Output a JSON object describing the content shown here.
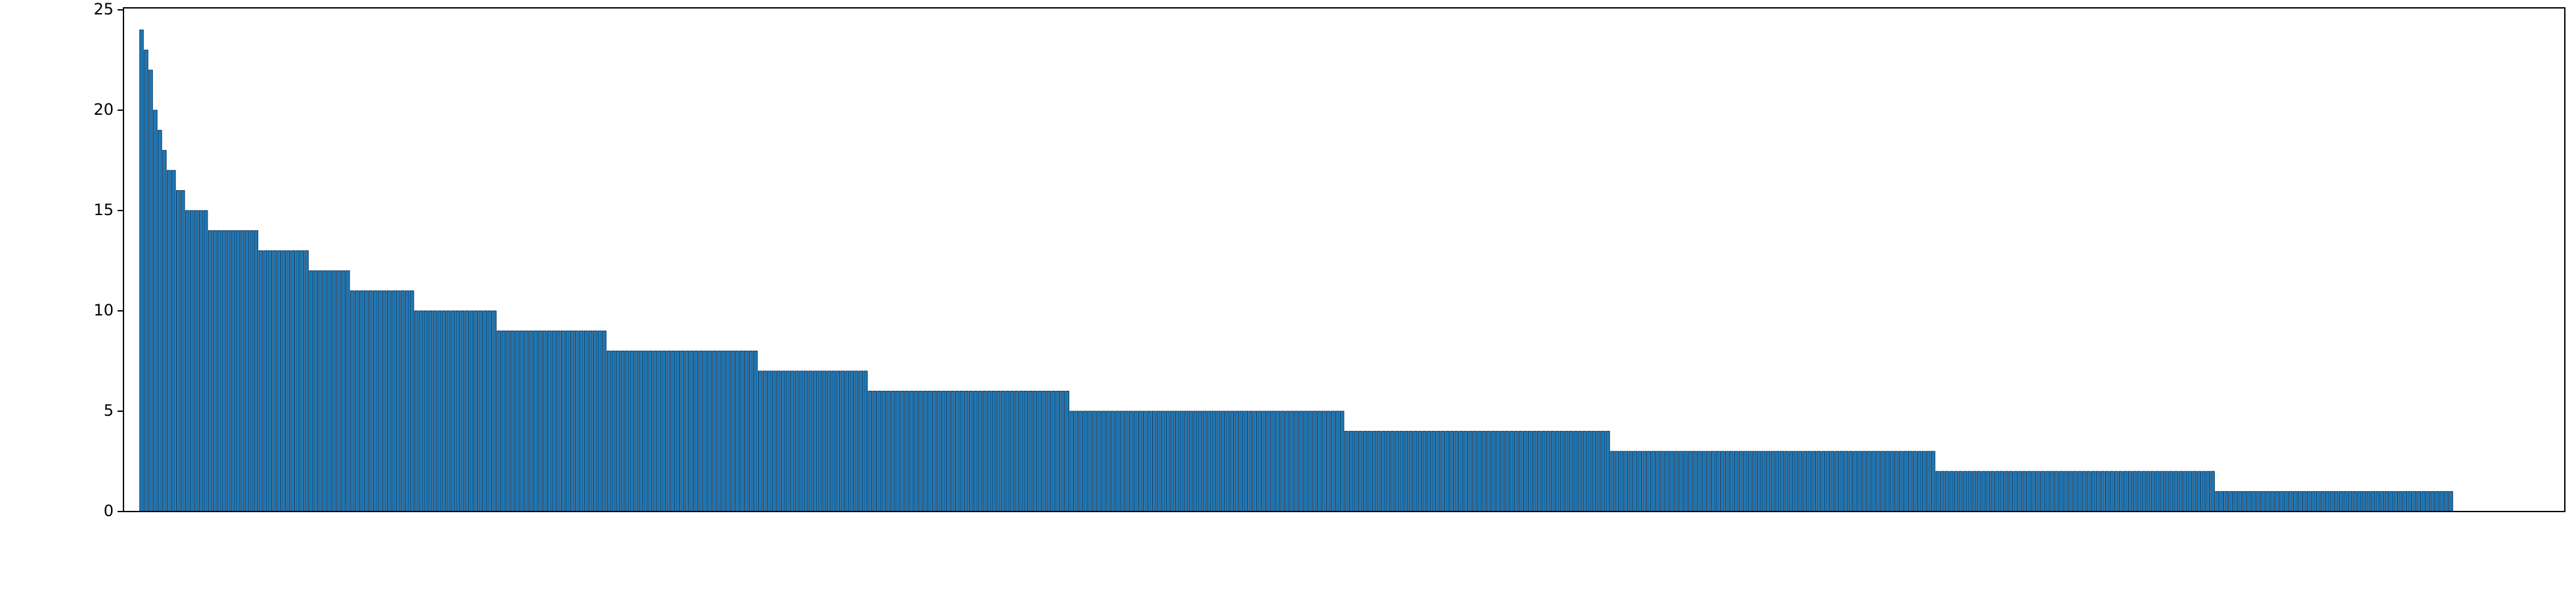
{
  "chart_data": {
    "type": "bar",
    "color": "#1f77b4",
    "ylim": [
      0,
      25.1
    ],
    "yticks": [
      0,
      5,
      10,
      15,
      20,
      25
    ],
    "values": [
      24,
      23,
      22,
      20,
      19,
      18,
      17,
      17,
      16,
      16,
      15,
      15,
      15,
      15,
      15,
      14,
      14,
      14,
      14,
      14,
      14,
      14,
      14,
      14,
      14,
      14,
      13,
      13,
      13,
      13,
      13,
      13,
      13,
      13,
      13,
      13,
      13,
      12,
      12,
      12,
      12,
      12,
      12,
      12,
      12,
      12,
      11,
      11,
      11,
      11,
      11,
      11,
      11,
      11,
      11,
      11,
      11,
      11,
      11,
      11,
      10,
      10,
      10,
      10,
      10,
      10,
      10,
      10,
      10,
      10,
      10,
      10,
      10,
      10,
      10,
      10,
      10,
      10,
      9,
      9,
      9,
      9,
      9,
      9,
      9,
      9,
      9,
      9,
      9,
      9,
      9,
      9,
      9,
      9,
      9,
      9,
      9,
      9,
      9,
      9,
      9,
      9,
      8,
      8,
      8,
      8,
      8,
      8,
      8,
      8,
      8,
      8,
      8,
      8,
      8,
      8,
      8,
      8,
      8,
      8,
      8,
      8,
      8,
      8,
      8,
      8,
      8,
      8,
      8,
      8,
      8,
      8,
      8,
      8,
      8,
      7,
      7,
      7,
      7,
      7,
      7,
      7,
      7,
      7,
      7,
      7,
      7,
      7,
      7,
      7,
      7,
      7,
      7,
      7,
      7,
      7,
      7,
      7,
      7,
      6,
      6,
      6,
      6,
      6,
      6,
      6,
      6,
      6,
      6,
      6,
      6,
      6,
      6,
      6,
      6,
      6,
      6,
      6,
      6,
      6,
      6,
      6,
      6,
      6,
      6,
      6,
      6,
      6,
      6,
      6,
      6,
      6,
      6,
      6,
      6,
      6,
      6,
      6,
      6,
      6,
      6,
      6,
      6,
      5,
      5,
      5,
      5,
      5,
      5,
      5,
      5,
      5,
      5,
      5,
      5,
      5,
      5,
      5,
      5,
      5,
      5,
      5,
      5,
      5,
      5,
      5,
      5,
      5,
      5,
      5,
      5,
      5,
      5,
      5,
      5,
      5,
      5,
      5,
      5,
      5,
      5,
      5,
      5,
      5,
      5,
      5,
      5,
      5,
      5,
      5,
      5,
      5,
      5,
      5,
      5,
      5,
      5,
      5,
      5,
      5,
      5,
      5,
      5,
      4,
      4,
      4,
      4,
      4,
      4,
      4,
      4,
      4,
      4,
      4,
      4,
      4,
      4,
      4,
      4,
      4,
      4,
      4,
      4,
      4,
      4,
      4,
      4,
      4,
      4,
      4,
      4,
      4,
      4,
      4,
      4,
      4,
      4,
      4,
      4,
      4,
      4,
      4,
      4,
      4,
      4,
      4,
      4,
      4,
      4,
      4,
      4,
      4,
      4,
      4,
      4,
      4,
      4,
      4,
      4,
      4,
      4,
      3,
      3,
      3,
      3,
      3,
      3,
      3,
      3,
      3,
      3,
      3,
      3,
      3,
      3,
      3,
      3,
      3,
      3,
      3,
      3,
      3,
      3,
      3,
      3,
      3,
      3,
      3,
      3,
      3,
      3,
      3,
      3,
      3,
      3,
      3,
      3,
      3,
      3,
      3,
      3,
      3,
      3,
      3,
      3,
      3,
      3,
      3,
      3,
      3,
      3,
      3,
      3,
      3,
      3,
      3,
      3,
      3,
      3,
      3,
      3,
      3,
      3,
      3,
      3,
      3,
      3,
      3,
      3,
      3,
      3,
      3,
      2,
      2,
      2,
      2,
      2,
      2,
      2,
      2,
      2,
      2,
      2,
      2,
      2,
      2,
      2,
      2,
      2,
      2,
      2,
      2,
      2,
      2,
      2,
      2,
      2,
      2,
      2,
      2,
      2,
      2,
      2,
      2,
      2,
      2,
      2,
      2,
      2,
      2,
      2,
      2,
      2,
      2,
      2,
      2,
      2,
      2,
      2,
      2,
      2,
      2,
      2,
      2,
      2,
      2,
      2,
      2,
      2,
      2,
      2,
      2,
      2,
      1,
      1,
      1,
      1,
      1,
      1,
      1,
      1,
      1,
      1,
      1,
      1,
      1,
      1,
      1,
      1,
      1,
      1,
      1,
      1,
      1,
      1,
      1,
      1,
      1,
      1,
      1,
      1,
      1,
      1,
      1,
      1,
      1,
      1,
      1,
      1,
      1,
      1,
      1,
      1,
      1,
      1,
      1,
      1,
      1,
      1,
      1,
      1,
      1,
      1,
      1,
      1
    ]
  }
}
